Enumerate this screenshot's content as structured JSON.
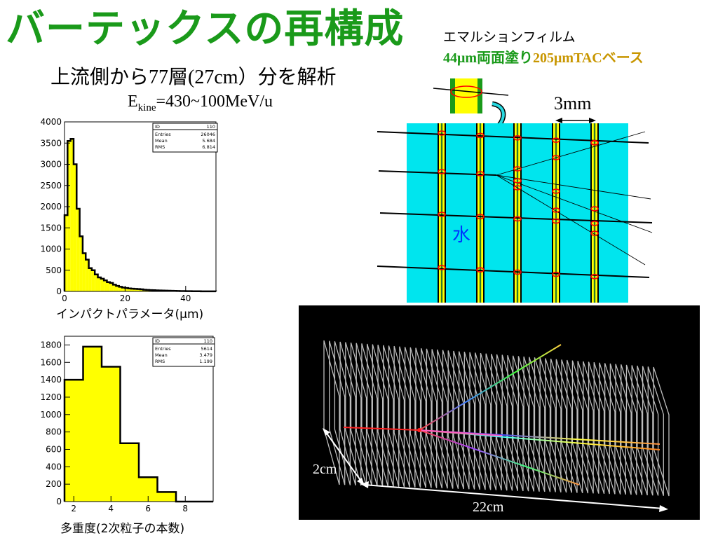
{
  "title": "バーテックスの再構成",
  "subtitle": {
    "prefix": "上流側から",
    "layers_num": "77",
    "layers_unit": "層",
    "range": "(27cm）",
    "suffix": "分を解析"
  },
  "energy": {
    "prefix": "E",
    "sub": "kine",
    "value": "=430~100MeV/u"
  },
  "film": {
    "line1": "エマルションフィルム",
    "line2_green": "44μm両面塗り",
    "line2_gold": "205μmTACベース"
  },
  "detector": {
    "spacing_label": "3mm",
    "water_label": "水"
  },
  "display3d": {
    "depth_label": "2cm",
    "length_label": "22cm"
  },
  "colors": {
    "title": "#1a9a1a",
    "water": "#00e5ee",
    "hist_fill": "#ffff00",
    "gold": "#c89600"
  },
  "chart_data": [
    {
      "type": "bar",
      "xlabel": "インパクトパラメータ(μm)",
      "x_ticks": [
        "0",
        "20",
        "40"
      ],
      "y_ticks": [
        "0",
        "500",
        "1000",
        "1500",
        "2000",
        "2500",
        "3000",
        "3500",
        "4000"
      ],
      "xlim": [
        0,
        50
      ],
      "ylim": [
        0,
        4000
      ],
      "bin_width": 1,
      "values": [
        1800,
        3550,
        3600,
        3000,
        1950,
        1300,
        900,
        750,
        550,
        500,
        400,
        330,
        300,
        260,
        220,
        200,
        160,
        130,
        110,
        90,
        80,
        70,
        65,
        60,
        55,
        50,
        40,
        35,
        30,
        28,
        25,
        22,
        20,
        18,
        16,
        14,
        12,
        10,
        9,
        8,
        7,
        6,
        5,
        4,
        4,
        3,
        3,
        2,
        2,
        2
      ],
      "stats": [
        {
          "label": "ID",
          "value": "110"
        },
        {
          "label": "Entries",
          "value": "26046"
        },
        {
          "label": "Mean",
          "value": "5.684"
        },
        {
          "label": "RMS",
          "value": "6.814"
        }
      ]
    },
    {
      "type": "bar",
      "xlabel": "多重度(2次粒子の本数)",
      "x_ticks": [
        "2",
        "4",
        "6",
        "8"
      ],
      "y_ticks": [
        "0",
        "200",
        "400",
        "600",
        "800",
        "1000",
        "1200",
        "1400",
        "1600",
        "1800"
      ],
      "xlim": [
        1.5,
        9.5
      ],
      "ylim": [
        0,
        1900
      ],
      "bin_width": 1,
      "x": [
        2,
        3,
        4,
        5,
        6,
        7,
        8,
        9
      ],
      "values": [
        1400,
        1780,
        1550,
        670,
        280,
        110,
        0,
        0
      ],
      "stats": [
        {
          "label": "ID",
          "value": "110"
        },
        {
          "label": "Entries",
          "value": "5614"
        },
        {
          "label": "Mean",
          "value": "3.479"
        },
        {
          "label": "RMS",
          "value": "1.199"
        }
      ]
    }
  ]
}
